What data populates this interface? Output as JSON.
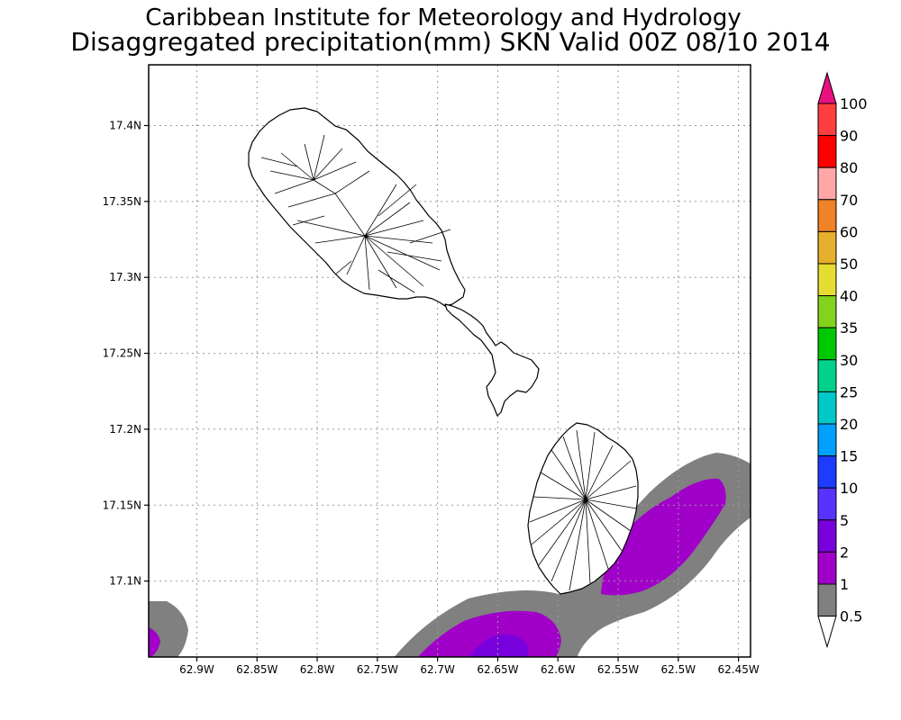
{
  "title": {
    "line1": "Caribbean Institute for Meteorology and Hydrology",
    "line2": "Disaggregated precipitation(mm) SKN Valid 00Z 08/10 2014"
  },
  "map": {
    "lon_ticks": [
      "62.9W",
      "62.85W",
      "62.8W",
      "62.75W",
      "62.7W",
      "62.65W",
      "62.6W",
      "62.55W",
      "62.5W",
      "62.45W"
    ],
    "lat_ticks": [
      "17.4N",
      "17.35N",
      "17.3N",
      "17.25N",
      "17.2N",
      "17.15N",
      "17.1N"
    ],
    "lon_range": [
      -62.94,
      -62.44
    ],
    "lat_range": [
      17.05,
      17.44
    ],
    "grid": true,
    "islands": [
      "St. Kitts",
      "Nevis"
    ]
  },
  "legend": {
    "levels": [
      {
        "label": "100",
        "color": "#e8117f"
      },
      {
        "label": "90",
        "color": "#ff3f3f"
      },
      {
        "label": "80",
        "color": "#ff0000"
      },
      {
        "label": "70",
        "color": "#ffa6a6"
      },
      {
        "label": "60",
        "color": "#f08228"
      },
      {
        "label": "50",
        "color": "#e6af2d"
      },
      {
        "label": "40",
        "color": "#e6dc32"
      },
      {
        "label": "35",
        "color": "#82d21e"
      },
      {
        "label": "30",
        "color": "#00c800"
      },
      {
        "label": "25",
        "color": "#00d28c"
      },
      {
        "label": "20",
        "color": "#00c8c8"
      },
      {
        "label": "15",
        "color": "#00a0ff"
      },
      {
        "label": "10",
        "color": "#1e3cff"
      },
      {
        "label": "5",
        "color": "#5a32ff"
      },
      {
        "label": "2",
        "color": "#7800dc"
      },
      {
        "label": "1",
        "color": "#a000c8"
      },
      {
        "label": "0.5",
        "color": "#808080"
      }
    ]
  }
}
